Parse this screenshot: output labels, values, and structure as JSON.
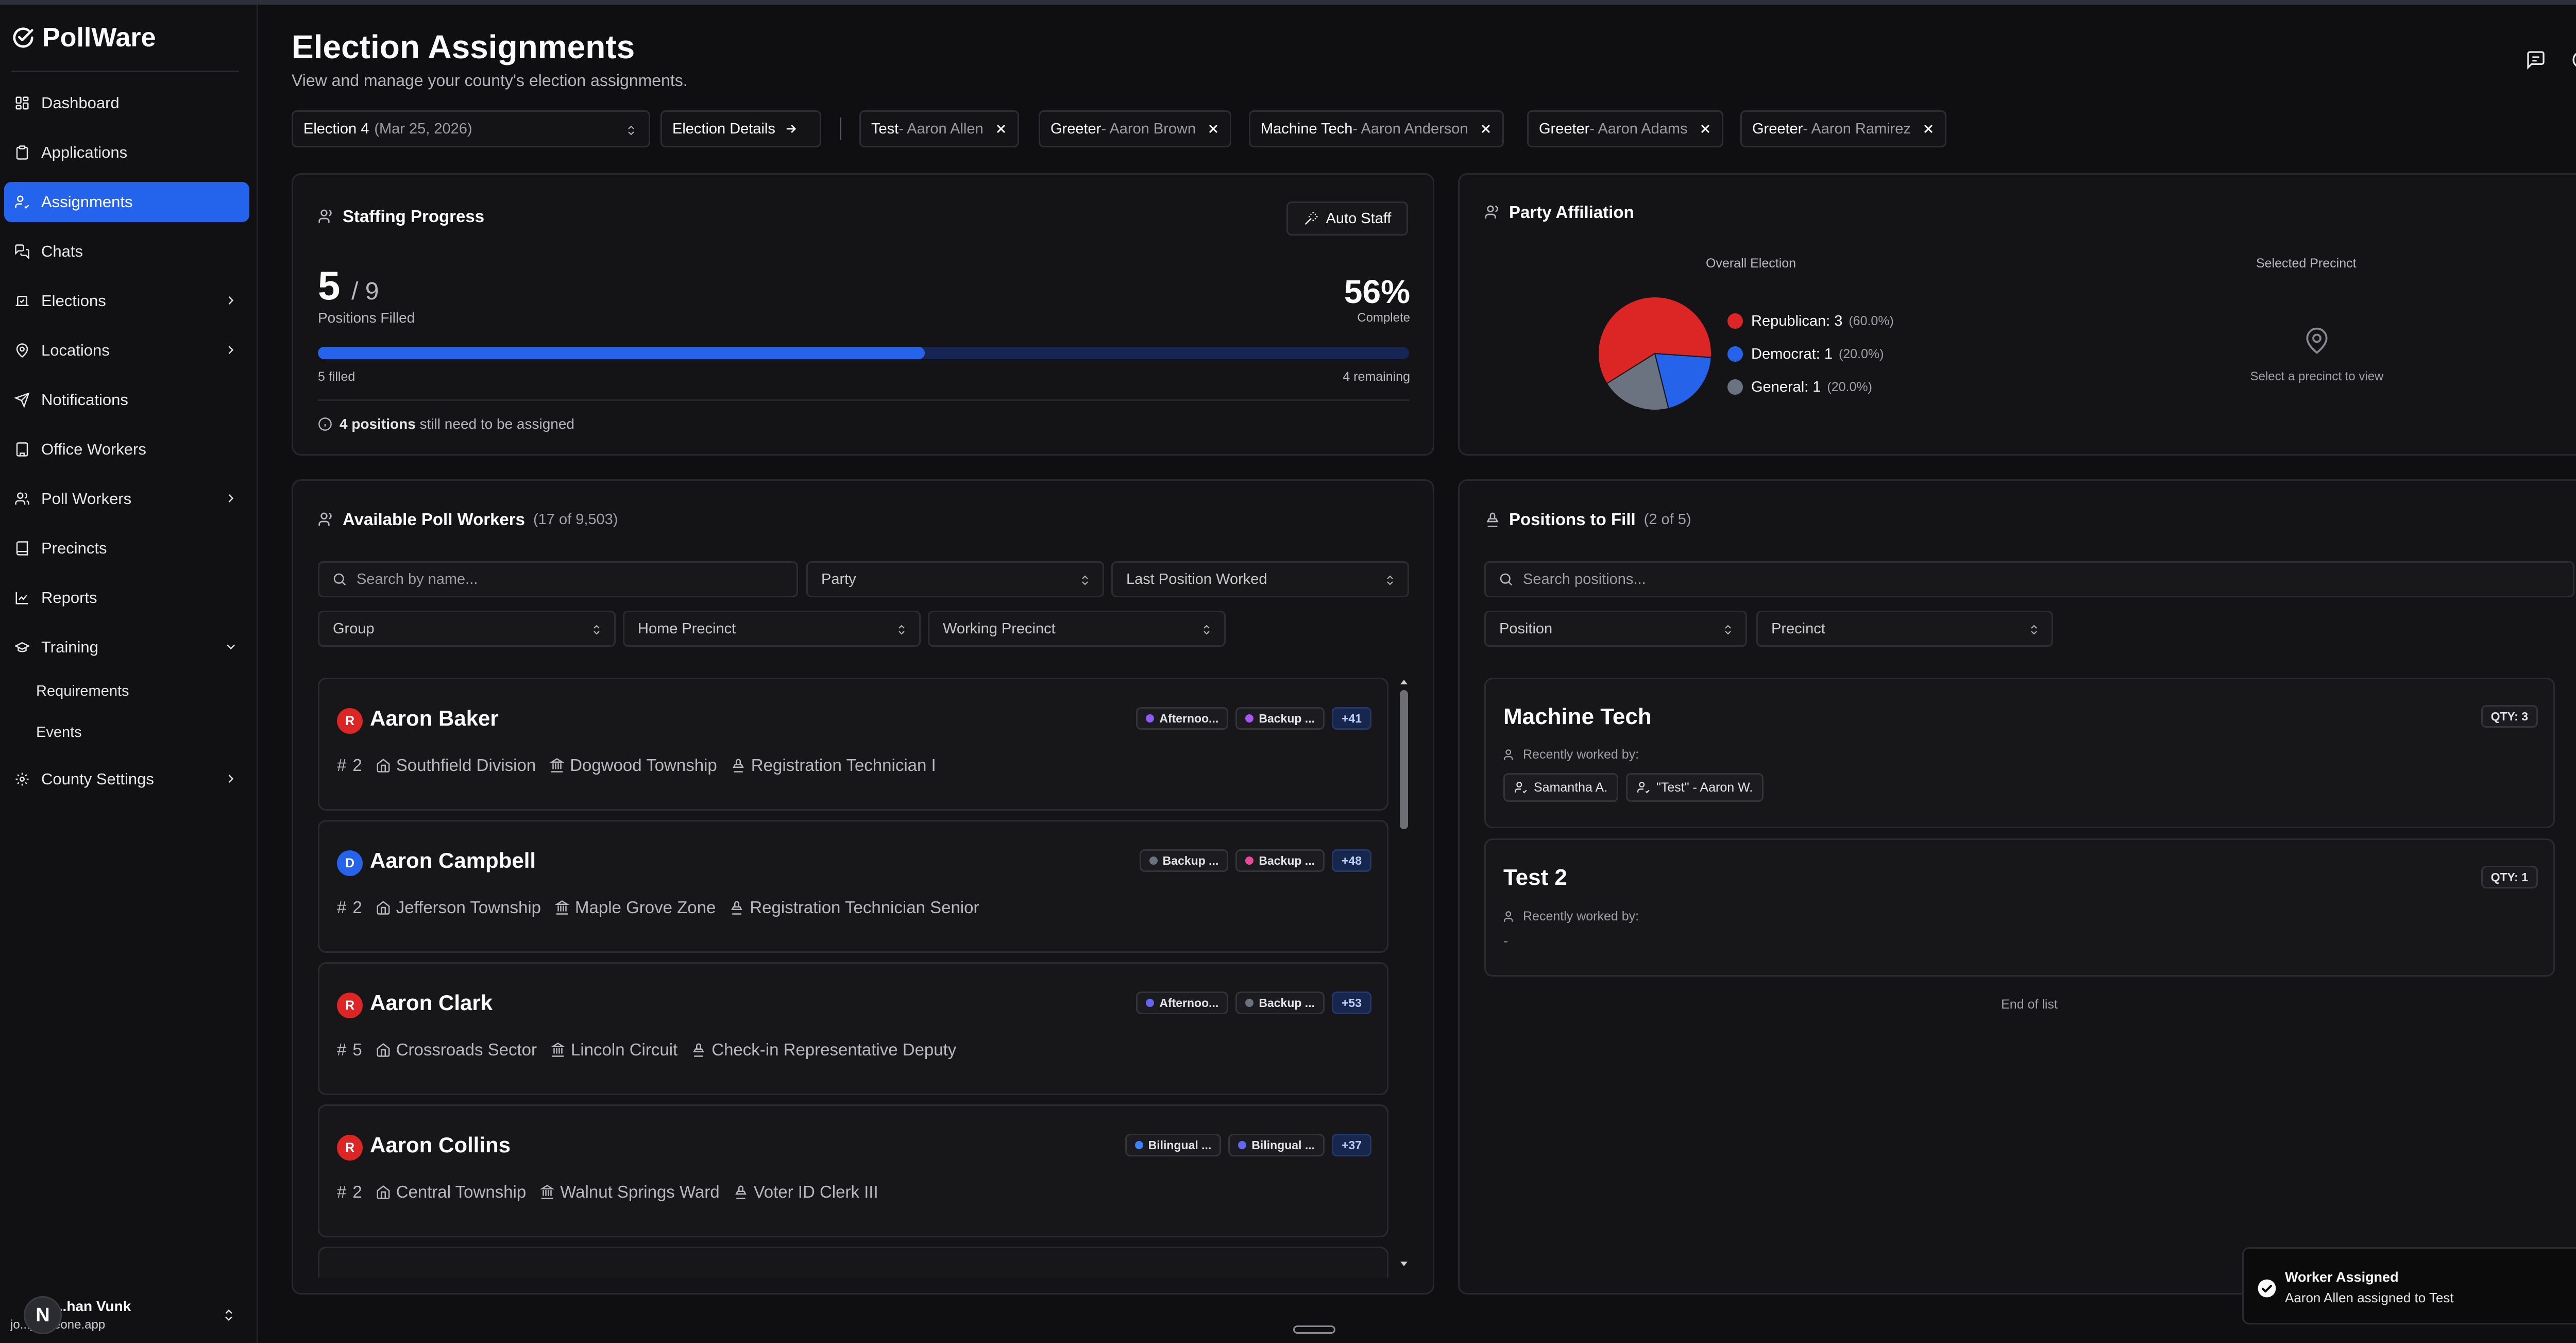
{
  "app": {
    "name": "PollWare"
  },
  "sidebar": {
    "items": [
      {
        "label": "Dashboard",
        "icon": "dashboard-icon"
      },
      {
        "label": "Applications",
        "icon": "clipboard-icon"
      },
      {
        "label": "Assignments",
        "icon": "user-check-icon",
        "active": true
      },
      {
        "label": "Chats",
        "icon": "messages-icon"
      },
      {
        "label": "Elections",
        "icon": "vote-icon",
        "has_children": true
      },
      {
        "label": "Locations",
        "icon": "map-pin-icon",
        "has_children": true
      },
      {
        "label": "Notifications",
        "icon": "send-icon"
      },
      {
        "label": "Office Workers",
        "icon": "building-icon"
      },
      {
        "label": "Poll Workers",
        "icon": "users-icon",
        "has_children": true
      },
      {
        "label": "Precincts",
        "icon": "book-icon"
      },
      {
        "label": "Reports",
        "icon": "chart-icon"
      },
      {
        "label": "Training",
        "icon": "graduation-cap-icon",
        "expanded": true
      },
      {
        "label": "County Settings",
        "icon": "settings-icon",
        "has_children": true
      }
    ],
    "training_children": [
      "Requirements",
      "Events"
    ],
    "user": {
      "avatar_letter": "N",
      "name": "...han Vunk",
      "email": "jo..._voteone.app"
    }
  },
  "header": {
    "title": "Election Assignments",
    "subtitle": "View and manage your county's election assignments."
  },
  "toolbar": {
    "election_select": {
      "name": "Election 4",
      "date": "(Mar 25, 2026)"
    },
    "election_details_label": "Election Details",
    "assignment_chips": [
      {
        "role": "Test",
        "person": " - Aaron Allen"
      },
      {
        "role": "Greeter",
        "person": " - Aaron Brown"
      },
      {
        "role": "Machine Tech",
        "person": " - Aaron Anderson"
      },
      {
        "role": "Greeter",
        "person": " - Aaron Adams"
      },
      {
        "role": "Greeter",
        "person": " - Aaron Ramirez"
      }
    ]
  },
  "staffing": {
    "title": "Staffing Progress",
    "auto_staff_label": "Auto Staff",
    "filled": "5",
    "total_text": "/ 9",
    "positions_filled_label": "Positions Filled",
    "percent_text": "56%",
    "complete_label": "Complete",
    "progress_fraction": 0.556,
    "filled_label": "5 filled",
    "remaining_label": "4 remaining",
    "note_bold": "4 positions",
    "note_rest": " still need to be assigned"
  },
  "party": {
    "title": "Party Affiliation",
    "overall_label": "Overall Election",
    "selected_label": "Selected Precinct",
    "select_hint": "Select a precinct to view",
    "legend": [
      {
        "label": "Republican: 3",
        "pct": "(60.0%)",
        "color": "#dc2626"
      },
      {
        "label": "Democrat: 1",
        "pct": "(20.0%)",
        "color": "#2563eb"
      },
      {
        "label": "General: 1",
        "pct": "(20.0%)",
        "color": "#6b7280"
      }
    ]
  },
  "chart_data": {
    "type": "pie",
    "categories": [
      "Republican",
      "Democrat",
      "General"
    ],
    "values": [
      3,
      1,
      1
    ],
    "colors": [
      "#dc2626",
      "#2563eb",
      "#6b7280"
    ],
    "title": "",
    "legend": "right"
  },
  "available": {
    "title": "Available Poll Workers",
    "count_text": "(17 of 9,503)",
    "search_placeholder": "Search by name...",
    "filters": [
      "Party",
      "Last Position Worked",
      "Group",
      "Home Precinct",
      "Working Precinct"
    ],
    "workers": [
      {
        "party": "R",
        "party_color": "#dc2626",
        "name": "Aaron Baker",
        "tags": [
          {
            "label": "Afternoo...",
            "color": "#8b5cf6"
          },
          {
            "label": "Backup ...",
            "color": "#a855f7"
          }
        ],
        "more": "+41",
        "num": "2",
        "home": "Southfield Division",
        "working": "Dogwood Township",
        "position": "Registration Technician I"
      },
      {
        "party": "D",
        "party_color": "#2563eb",
        "name": "Aaron Campbell",
        "tags": [
          {
            "label": "Backup ...",
            "color": "#6b7280"
          },
          {
            "label": "Backup ...",
            "color": "#ec4899"
          }
        ],
        "more": "+48",
        "num": "2",
        "home": "Jefferson Township",
        "working": "Maple Grove Zone",
        "position": "Registration Technician Senior"
      },
      {
        "party": "R",
        "party_color": "#dc2626",
        "name": "Aaron Clark",
        "tags": [
          {
            "label": "Afternoo...",
            "color": "#6366f1"
          },
          {
            "label": "Backup ...",
            "color": "#6b7280"
          }
        ],
        "more": "+53",
        "num": "5",
        "home": "Crossroads Sector",
        "working": "Lincoln Circuit",
        "position": "Check-in Representative Deputy"
      },
      {
        "party": "R",
        "party_color": "#dc2626",
        "name": "Aaron Collins",
        "tags": [
          {
            "label": "Bilingual ...",
            "color": "#3b82f6"
          },
          {
            "label": "Bilingual ...",
            "color": "#6366f1"
          }
        ],
        "more": "+37",
        "num": "2",
        "home": "Central Township",
        "working": "Walnut Springs Ward",
        "position": "Voter ID Clerk III"
      }
    ]
  },
  "positions": {
    "title": "Positions to Fill",
    "count_text": "(2 of 5)",
    "search_placeholder": "Search positions...",
    "filters": [
      "Position",
      "Precinct"
    ],
    "recent_label": "Recently worked by:",
    "items": [
      {
        "name": "Machine Tech",
        "qty": "QTY: 3",
        "recent": [
          "Samantha A.",
          "\"Test\" - Aaron W."
        ]
      },
      {
        "name": "Test 2",
        "qty": "QTY: 1",
        "recent_empty": "-"
      }
    ],
    "end_label": "End of list"
  },
  "toast": {
    "title": "Worker Assigned",
    "message": "Aaron Allen assigned to Test"
  }
}
